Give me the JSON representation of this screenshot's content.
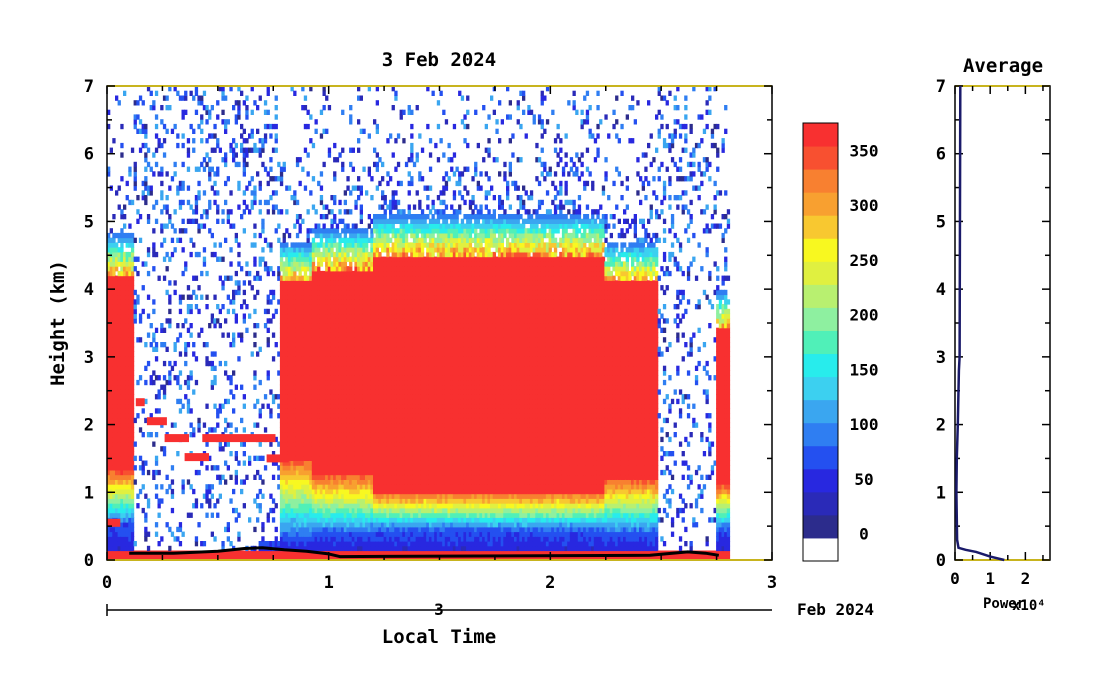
{
  "chart_data": [
    {
      "type": "heatmap",
      "title": "3 Feb 2024",
      "xlabel": "Local Time",
      "ylabel": "Height (km)",
      "xlim": [
        0,
        3
      ],
      "ylim": [
        0,
        7
      ],
      "xticks": [
        "0",
        "1",
        "2",
        "3"
      ],
      "yticks": [
        "0",
        "1",
        "2",
        "3",
        "4",
        "5",
        "6",
        "7"
      ],
      "date_axis": {
        "day": "3",
        "month_year": "Feb 2024"
      },
      "colorbar": {
        "tick_labels": [
          "0",
          "50",
          "100",
          "150",
          "200",
          "250",
          "300",
          "350"
        ],
        "range": [
          -25,
          375
        ],
        "colors": [
          "#ffffff",
          "#2c2c8c",
          "#2a2ab8",
          "#2828e0",
          "#2450f0",
          "#2f7ef2",
          "#3aa6f0",
          "#3cd0f0",
          "#28ecec",
          "#50f0b8",
          "#8ef0a0",
          "#b8f070",
          "#e0f040",
          "#f8f820",
          "#f8c830",
          "#f8a030",
          "#f88030",
          "#f85030",
          "#f83030"
        ]
      },
      "regions": [
        {
          "t0": 0.0,
          "t1": 0.12,
          "bottom": 0.55,
          "base": 1.3,
          "top": 4.8
        },
        {
          "t0": 0.12,
          "t1": 0.68,
          "bottom": 0.15,
          "base": 7.0,
          "top": 7.0
        },
        {
          "t0": 0.68,
          "t1": 0.78,
          "bottom": 0.3,
          "base": 7.0,
          "top": 7.0
        },
        {
          "t0": 0.78,
          "t1": 0.92,
          "bottom": 0.35,
          "base": 1.5,
          "top": 4.7
        },
        {
          "t0": 0.92,
          "t1": 1.2,
          "bottom": 0.4,
          "base": 1.25,
          "top": 4.9
        },
        {
          "t0": 1.2,
          "t1": 2.25,
          "bottom": 0.45,
          "base": 1.0,
          "top": 5.1
        },
        {
          "t0": 2.25,
          "t1": 2.48,
          "bottom": 0.4,
          "base": 1.2,
          "top": 4.7
        },
        {
          "t0": 2.48,
          "t1": 2.75,
          "bottom": 0.15,
          "base": 7.0,
          "top": 7.0
        },
        {
          "t0": 2.75,
          "t1": 2.81,
          "bottom": 0.45,
          "base": 1.1,
          "top": 4.0
        }
      ],
      "aerosol_layers": [
        {
          "t0": 0.13,
          "t1": 0.17,
          "z": 2.33
        },
        {
          "t0": 0.18,
          "t1": 0.27,
          "z": 2.05
        },
        {
          "t0": 0.26,
          "t1": 0.37,
          "z": 1.8
        },
        {
          "t0": 0.35,
          "t1": 0.46,
          "z": 1.52
        },
        {
          "t0": 0.43,
          "t1": 0.67,
          "z": 1.8
        },
        {
          "t0": 0.67,
          "t1": 0.76,
          "z": 1.8
        },
        {
          "t0": 0.72,
          "t1": 0.82,
          "z": 1.5
        },
        {
          "t0": 0.0,
          "t1": 0.06,
          "z": 0.55
        }
      ],
      "boundary_layer_line": {
        "x": [
          0.1,
          0.3,
          0.5,
          0.62,
          0.7,
          0.8,
          0.9,
          1.0,
          1.05,
          2.45,
          2.55,
          2.62,
          2.7,
          2.76
        ],
        "y": [
          0.1,
          0.1,
          0.13,
          0.17,
          0.18,
          0.15,
          0.13,
          0.09,
          0.05,
          0.07,
          0.1,
          0.12,
          0.1,
          0.07
        ]
      }
    },
    {
      "type": "line",
      "title": "Average",
      "xlabel": "Power",
      "axis_multiplier": "x10⁴",
      "xlim": [
        0,
        2.7
      ],
      "ylim": [
        0,
        7
      ],
      "xticks": [
        "0",
        "1",
        "2"
      ],
      "yticks": [
        "0",
        "1",
        "2",
        "3",
        "4",
        "5",
        "6",
        "7"
      ],
      "series": [
        {
          "x": [
            0.15,
            0.13,
            0.11,
            0.08,
            0.05,
            0.04,
            0.05,
            0.06,
            0.1,
            0.3,
            0.6,
            1.0,
            1.4
          ],
          "y": [
            7.0,
            3.0,
            2.8,
            2.0,
            1.5,
            1.0,
            0.6,
            0.3,
            0.18,
            0.15,
            0.12,
            0.05,
            0.0
          ]
        }
      ]
    }
  ]
}
